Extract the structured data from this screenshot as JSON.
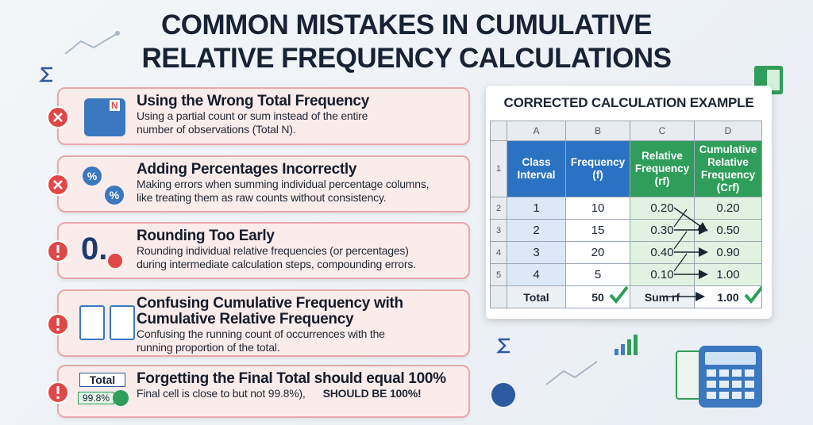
{
  "header": {
    "title": [
      "COMMON MISTAKES IN CUMULATIVE",
      "RELATIVE FREQUENCY CALCULATIONS"
    ]
  },
  "mistakes": [
    {
      "title": [
        "Using the Wrong Total Frequency"
      ],
      "description": [
        "Using a partial count or sum instead of the entire",
        "number of observations (Total N)."
      ],
      "icon_texts": [
        "N"
      ]
    },
    {
      "title": [
        "Adding Percentages Incorrectly"
      ],
      "description": [
        "Making errors when summing individual percentage columns,",
        "like treating them as raw counts without consistency."
      ],
      "icon_texts": [
        "%",
        "%"
      ]
    },
    {
      "title": [
        "Rounding Too Early"
      ],
      "description": [
        "Rounding individual relative frequencies (or percentages)",
        "during intermediate calculation steps, compounding errors."
      ],
      "icon_texts": [
        "0."
      ]
    },
    {
      "title": [
        "Confusing Cumulative Frequency with",
        "Cumulative Relative Frequency"
      ],
      "description": [
        "Confusing the running count of occurrences with the",
        "running proportion of the total."
      ],
      "icon_texts": []
    },
    {
      "title": [
        "Forgetting the Final Total should equal 100%"
      ],
      "description": [
        "Final cell is close to but not 99.8%),"
      ],
      "emphasis": "SHOULD BE 100%!",
      "icon_texts": [
        "Total",
        "99.8%"
      ]
    }
  ],
  "example": {
    "title": "CORRECTED CALCULATION EXAMPLE",
    "column_letters": [
      "A",
      "B",
      "C",
      "D"
    ],
    "row_numbers": [
      "1",
      "2",
      "3",
      "4",
      "5"
    ],
    "headers": [
      [
        "Class",
        "Interval"
      ],
      [
        "Frequency",
        "(f)"
      ],
      [
        "Relative",
        "Frequency",
        "(rf)"
      ],
      [
        "Cumulative",
        "Relative",
        "Frequency",
        "(Crf)"
      ]
    ],
    "rows": [
      [
        "1",
        "10",
        "0.20",
        "0.20"
      ],
      [
        "2",
        "15",
        "0.30",
        "0.50"
      ],
      [
        "3",
        "20",
        "0.40",
        "0.90"
      ],
      [
        "4",
        "5",
        "0.10",
        "1.00"
      ]
    ],
    "total_row": [
      "Total",
      "50",
      "Sum rf",
      "1.00"
    ]
  }
}
